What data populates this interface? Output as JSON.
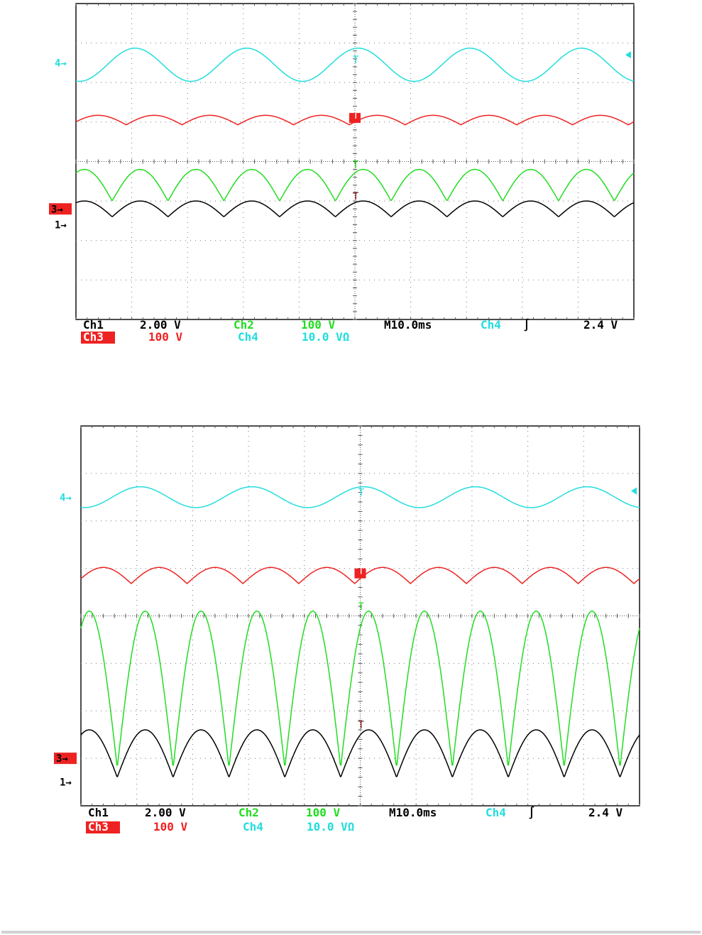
{
  "chart_data": [
    {
      "type": "line",
      "title": "",
      "x_unit": "ms",
      "xlim": [
        -50,
        50
      ],
      "divisions": [
        10,
        8
      ],
      "grid": true,
      "trigger_marker": "right edge, channel 4 level",
      "colors": {
        "ch1": "#000000",
        "ch2": "#22dd22",
        "ch3": "#ee2222",
        "ch4": "#22dddd",
        "marker": "#7a1010"
      },
      "series": [
        {
          "name": "Ch4",
          "kind": "sine",
          "period_ms": 20,
          "phase": 0.22,
          "center_div": 1.55,
          "amplitude_div": 0.42
        },
        {
          "name": "Ch3",
          "kind": "hump",
          "period_ms": 10,
          "phase": 0.1,
          "center_div": 2.95,
          "amplitude_div": 0.12
        },
        {
          "name": "Ch2",
          "kind": "rectified",
          "period_ms": 10,
          "phase": 0.35,
          "base_div": 5.0,
          "peak_div": 4.2
        },
        {
          "name": "Ch1",
          "kind": "rectified",
          "period_ms": 10,
          "phase": 0.35,
          "base_div": 5.4,
          "peak_div": 5.0
        }
      ],
      "left_markers": [
        {
          "label": "4",
          "color": "#22dddd",
          "style": "arrow",
          "level_div": 1.5
        },
        {
          "label": "3",
          "color": "#ee2222",
          "style": "box",
          "level_div": 5.2
        },
        {
          "label": "1",
          "color": "#000000",
          "style": "arrow",
          "level_div": 5.6
        }
      ],
      "info_line1": [
        {
          "text": "Ch1",
          "color": "#000000"
        },
        {
          "text": "2.00 V",
          "color": "#000000"
        },
        {
          "text": "Ch2",
          "color": "#22dd22"
        },
        {
          "text": "100 V",
          "color": "#22dd22"
        },
        {
          "text": "M10.0ms",
          "color": "#000000"
        },
        {
          "text": "Ch4",
          "color": "#22dddd"
        },
        {
          "text": "∫",
          "color": "#000000"
        },
        {
          "text": "2.4 V",
          "color": "#000000"
        }
      ],
      "info_line2": [
        {
          "text": "Ch3",
          "color": "#ffffff",
          "box": "#ee2222"
        },
        {
          "text": "100 V",
          "color": "#ee2222"
        },
        {
          "text": "Ch4",
          "color": "#22dddd"
        },
        {
          "text": "10.0 VΩ",
          "color": "#22dddd"
        }
      ]
    },
    {
      "type": "line",
      "title": "",
      "x_unit": "ms",
      "xlim": [
        -50,
        50
      ],
      "divisions": [
        10,
        8
      ],
      "grid": true,
      "trigger_marker": "right edge, channel 4 level",
      "colors": {
        "ch1": "#000000",
        "ch2": "#22dd22",
        "ch3": "#ee2222",
        "ch4": "#22dddd",
        "marker": "#7a1010"
      },
      "series": [
        {
          "name": "Ch4",
          "kind": "sine",
          "period_ms": 20,
          "phase": 0.22,
          "center_div": 1.5,
          "amplitude_div": 0.22
        },
        {
          "name": "Ch3",
          "kind": "hump",
          "period_ms": 10,
          "phase": 0.1,
          "center_div": 3.15,
          "amplitude_div": 0.17
        },
        {
          "name": "Ch2",
          "kind": "rectified",
          "period_ms": 10,
          "phase": 0.35,
          "base_div": 7.2,
          "peak_div": 3.9
        },
        {
          "name": "Ch1",
          "kind": "rectified",
          "period_ms": 10,
          "phase": 0.35,
          "base_div": 7.4,
          "peak_div": 6.4
        }
      ],
      "left_markers": [
        {
          "label": "4",
          "color": "#22dddd",
          "style": "arrow",
          "level_div": 1.5
        },
        {
          "label": "3",
          "color": "#ee2222",
          "style": "box",
          "level_div": 7.0
        },
        {
          "label": "1",
          "color": "#000000",
          "style": "arrow",
          "level_div": 7.5
        }
      ],
      "info_line1": [
        {
          "text": "Ch1",
          "color": "#000000"
        },
        {
          "text": "2.00 V",
          "color": "#000000"
        },
        {
          "text": "Ch2",
          "color": "#22dd22"
        },
        {
          "text": "100 V",
          "color": "#22dd22"
        },
        {
          "text": "M10.0ms",
          "color": "#000000"
        },
        {
          "text": "Ch4",
          "color": "#22dddd"
        },
        {
          "text": "∫",
          "color": "#000000"
        },
        {
          "text": "2.4 V",
          "color": "#000000"
        }
      ],
      "info_line2": [
        {
          "text": "Ch3",
          "color": "#ffffff",
          "box": "#ee2222"
        },
        {
          "text": "100 V",
          "color": "#ee2222"
        },
        {
          "text": "Ch4",
          "color": "#22dddd"
        },
        {
          "text": "10.0 VΩ",
          "color": "#22dddd"
        }
      ]
    }
  ]
}
